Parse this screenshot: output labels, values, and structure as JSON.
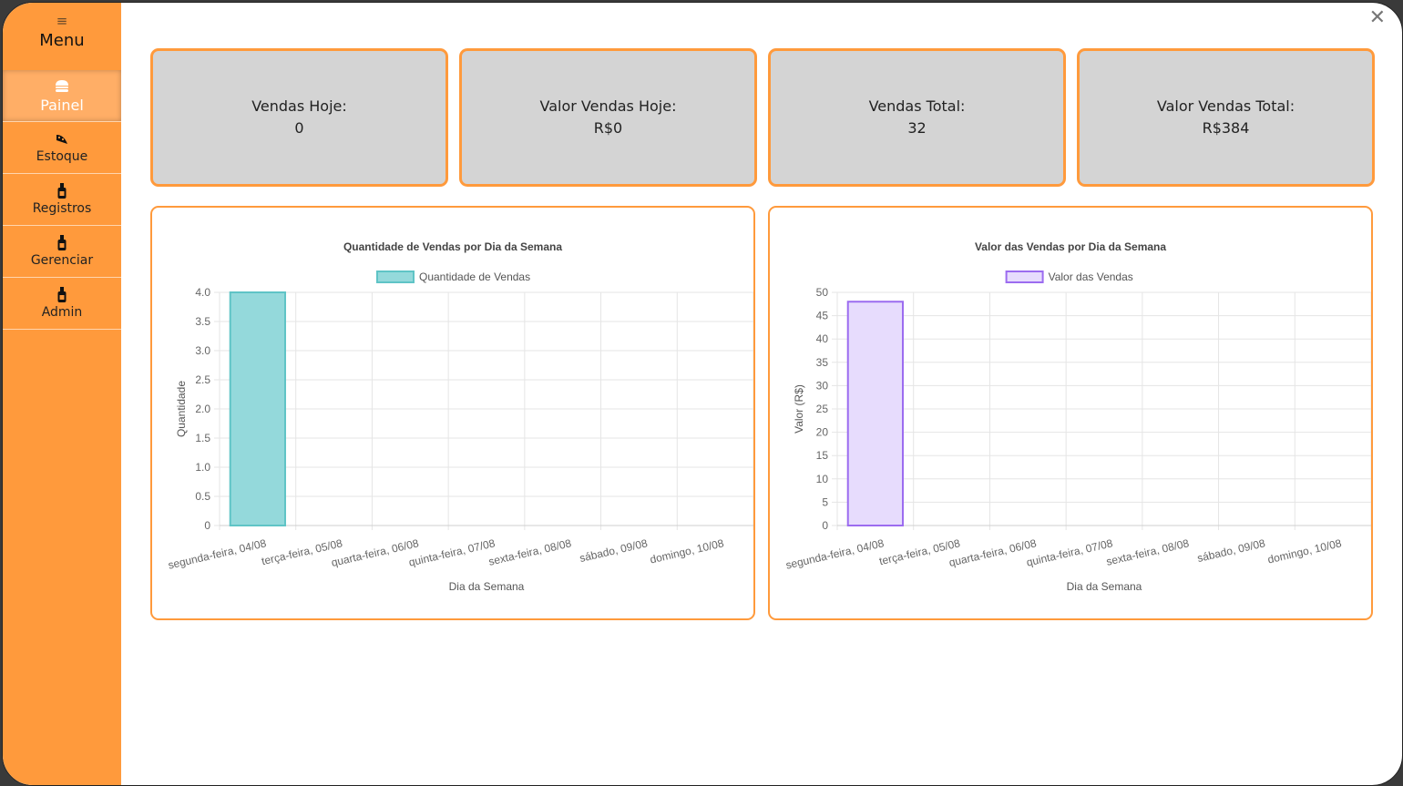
{
  "sidebar": {
    "menu_icon": "≡",
    "menu_label": "Menu",
    "items": [
      {
        "label": "Painel",
        "icon": "burger-icon",
        "active": true
      },
      {
        "label": "Estoque",
        "icon": "pizza-icon",
        "active": false
      },
      {
        "label": "Registros",
        "icon": "bottle-icon",
        "active": false
      },
      {
        "label": "Gerenciar",
        "icon": "bottle-icon",
        "active": false
      },
      {
        "label": "Admin",
        "icon": "bottle-icon",
        "active": false
      }
    ]
  },
  "close_icon": "✕",
  "cards": [
    {
      "label": "Vendas Hoje:",
      "value": "0"
    },
    {
      "label": "Valor Vendas Hoje:",
      "value": "R$0"
    },
    {
      "label": "Vendas Total:",
      "value": "32"
    },
    {
      "label": "Valor Vendas Total:",
      "value": "R$384"
    }
  ],
  "colors": {
    "accent": "#ff9a3c",
    "card_bg": "#d4d4d4",
    "teal": "#94d9db",
    "lavender": "#e7dcfd"
  },
  "chart_data": [
    {
      "type": "bar",
      "title": "Quantidade de Vendas por Dia da Semana",
      "xlabel": "Dia da Semana",
      "ylabel": "Quantidade",
      "categories": [
        "segunda-feira, 04/08",
        "terça-feira, 05/08",
        "quarta-feira, 06/08",
        "quinta-feira, 07/08",
        "sexta-feira, 08/08",
        "sábado, 09/08",
        "domingo, 10/08"
      ],
      "series": [
        {
          "name": "Quantidade de Vendas",
          "values": [
            4,
            0,
            0,
            0,
            0,
            0,
            0
          ]
        }
      ],
      "ylim": [
        0,
        4
      ],
      "yticks": [
        "0",
        "0.5",
        "1.0",
        "1.5",
        "2.0",
        "2.5",
        "3.0",
        "3.5",
        "4.0"
      ],
      "legend": "top",
      "grid": true,
      "fill": "#94d9db",
      "stroke": "#5fc4c6"
    },
    {
      "type": "bar",
      "title": "Valor das Vendas por Dia da Semana",
      "xlabel": "Dia da Semana",
      "ylabel": "Valor (R$)",
      "categories": [
        "segunda-feira, 04/08",
        "terça-feira, 05/08",
        "quarta-feira, 06/08",
        "quinta-feira, 07/08",
        "sexta-feira, 08/08",
        "sábado, 09/08",
        "domingo, 10/08"
      ],
      "series": [
        {
          "name": "Valor das Vendas",
          "values": [
            48,
            0,
            0,
            0,
            0,
            0,
            0
          ]
        }
      ],
      "ylim": [
        0,
        50
      ],
      "yticks": [
        "0",
        "5",
        "10",
        "15",
        "20",
        "25",
        "30",
        "35",
        "40",
        "45",
        "50"
      ],
      "legend": "top",
      "grid": true,
      "fill": "#e7dcfd",
      "stroke": "#9c6cf0"
    }
  ]
}
